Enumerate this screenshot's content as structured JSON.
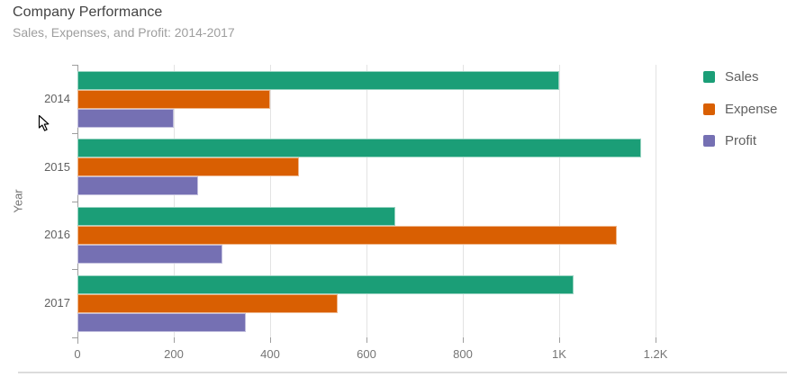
{
  "header": {
    "title": "Company Performance",
    "subtitle": "Sales, Expenses, and Profit: 2014-2017"
  },
  "chart_data": {
    "type": "bar",
    "orientation": "horizontal",
    "title": "Company Performance",
    "subtitle": "Sales, Expenses, and Profit: 2014-2017",
    "ylabel": "Year",
    "xlabel": "",
    "categories": [
      "2014",
      "2015",
      "2016",
      "2017"
    ],
    "series": [
      {
        "name": "Sales",
        "color": "#1b9e77",
        "values": [
          1000,
          1170,
          660,
          1030
        ]
      },
      {
        "name": "Expense",
        "color": "#d95f02",
        "values": [
          400,
          460,
          1120,
          540
        ]
      },
      {
        "name": "Profit",
        "color": "#7570b3",
        "values": [
          200,
          250,
          300,
          350
        ]
      }
    ],
    "xlim": [
      0,
      1200
    ],
    "x_tick_labels": [
      "0",
      "200",
      "400",
      "600",
      "800",
      "1K",
      "1.2K"
    ],
    "x_tick_values": [
      0,
      200,
      400,
      600,
      800,
      1000,
      1200
    ],
    "grid": true,
    "legend_position": "right"
  },
  "colors": {
    "title_text": "#424242",
    "subtitle_text": "#9e9e9e",
    "axis_text": "#757575",
    "category_text": "#616161",
    "legend_text": "#616161",
    "gridline": "#e3e3e3",
    "axis_line": "#9e9e9e",
    "scrollbar_track": "#dcdcdc",
    "background": "#ffffff"
  }
}
